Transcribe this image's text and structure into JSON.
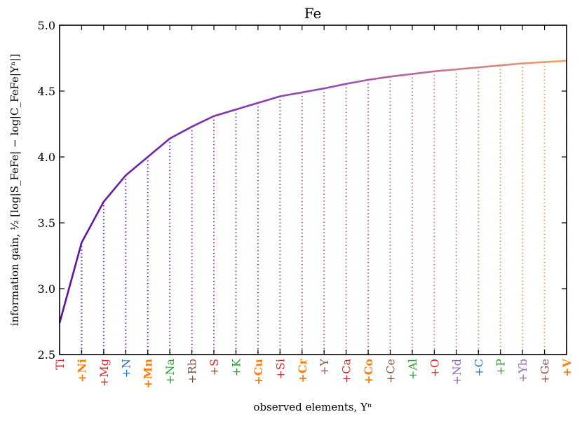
{
  "chart_data": {
    "type": "line",
    "title": "Fe",
    "xlabel": "observed elements,  Yⁿ",
    "ylabel": "information gain, ½ [log|S_FeFe| − log|C_FeFe|Yⁿ|]",
    "ylim": [
      2.5,
      5.0
    ],
    "yticks": [
      "2.5",
      "3.0",
      "3.5",
      "4.0",
      "4.5",
      "5.0"
    ],
    "grid": false,
    "categories": [
      {
        "label": "Ti",
        "color": "#d62728",
        "bold": false
      },
      {
        "label": "+Ni",
        "color": "#ff7f0e",
        "bold": true
      },
      {
        "label": "+Mg",
        "color": "#d62728",
        "bold": false
      },
      {
        "label": "+N",
        "color": "#1f77b4",
        "bold": false
      },
      {
        "label": "+Mn",
        "color": "#ff7f0e",
        "bold": true
      },
      {
        "label": "+Na",
        "color": "#2ca02c",
        "bold": false
      },
      {
        "label": "+Rb",
        "color": "#8c564b",
        "bold": false
      },
      {
        "label": "+S",
        "color": "#d62728",
        "bold": false
      },
      {
        "label": "+K",
        "color": "#2ca02c",
        "bold": false
      },
      {
        "label": "+Cu",
        "color": "#ff7f0e",
        "bold": true
      },
      {
        "label": "+Si",
        "color": "#d62728",
        "bold": false
      },
      {
        "label": "+Cr",
        "color": "#ff7f0e",
        "bold": true
      },
      {
        "label": "+Y",
        "color": "#8c564b",
        "bold": false
      },
      {
        "label": "+Ca",
        "color": "#d62728",
        "bold": false
      },
      {
        "label": "+Co",
        "color": "#ff7f0e",
        "bold": true
      },
      {
        "label": "+Ce",
        "color": "#8c564b",
        "bold": false
      },
      {
        "label": "+Al",
        "color": "#2ca02c",
        "bold": false
      },
      {
        "label": "+O",
        "color": "#d62728",
        "bold": false
      },
      {
        "label": "+Nd",
        "color": "#9467bd",
        "bold": false
      },
      {
        "label": "+C",
        "color": "#1f77b4",
        "bold": false
      },
      {
        "label": "+P",
        "color": "#2ca02c",
        "bold": false
      },
      {
        "label": "+Yb",
        "color": "#9467bd",
        "bold": false
      },
      {
        "label": "+Ge",
        "color": "#8c564b",
        "bold": false
      },
      {
        "label": "+V",
        "color": "#ff7f0e",
        "bold": true
      }
    ],
    "values": [
      2.74,
      3.35,
      3.66,
      3.86,
      4.0,
      4.14,
      4.23,
      4.31,
      4.36,
      4.41,
      4.46,
      4.49,
      4.52,
      4.555,
      4.585,
      4.61,
      4.63,
      4.65,
      4.665,
      4.68,
      4.695,
      4.71,
      4.72,
      4.73
    ],
    "line_color_start": "#5b0fa8",
    "line_color_end": "#f5a35c"
  }
}
